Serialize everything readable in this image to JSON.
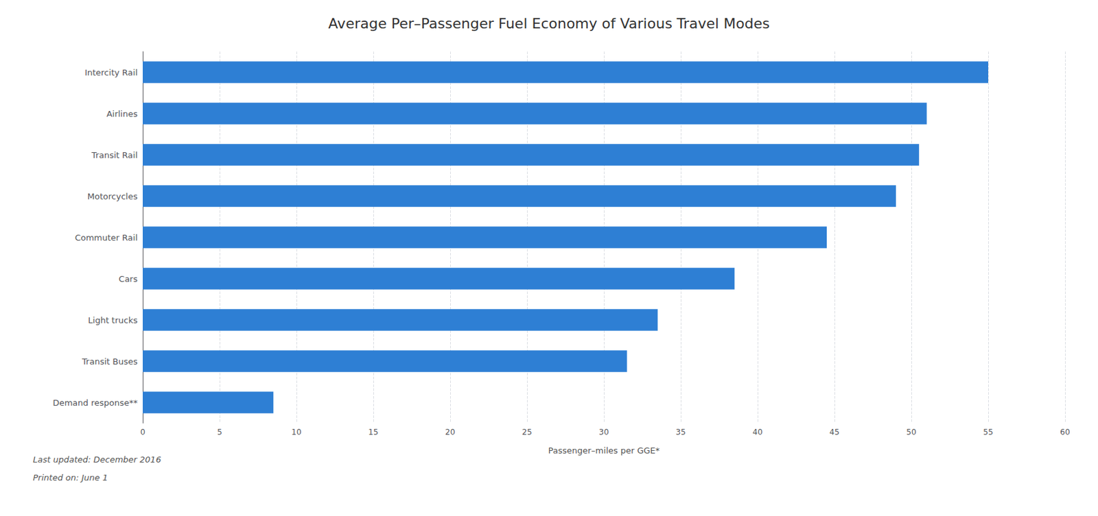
{
  "chart_data": {
    "type": "bar",
    "orientation": "horizontal",
    "title": "Average Per–Passenger Fuel Economy of Various Travel Modes",
    "categories": [
      "Demand response**",
      "Transit Buses",
      "Light trucks",
      "Cars",
      "Commuter Rail",
      "Motorcycles",
      "Transit Rail",
      "Airlines",
      "Intercity Rail"
    ],
    "values": [
      8.5,
      31.5,
      33.5,
      38.5,
      44.5,
      49.0,
      50.5,
      51.0,
      55.0
    ],
    "color": "#2e7fd4",
    "xlabel": "Passenger–miles per GGE*",
    "xlim": [
      0,
      60
    ],
    "xticks": [
      0,
      5,
      10,
      15,
      20,
      25,
      30,
      35,
      40,
      45,
      50,
      55,
      60
    ],
    "grid": true,
    "annotations": [
      "Last updated: December 2016",
      "Printed on: June 1"
    ]
  }
}
